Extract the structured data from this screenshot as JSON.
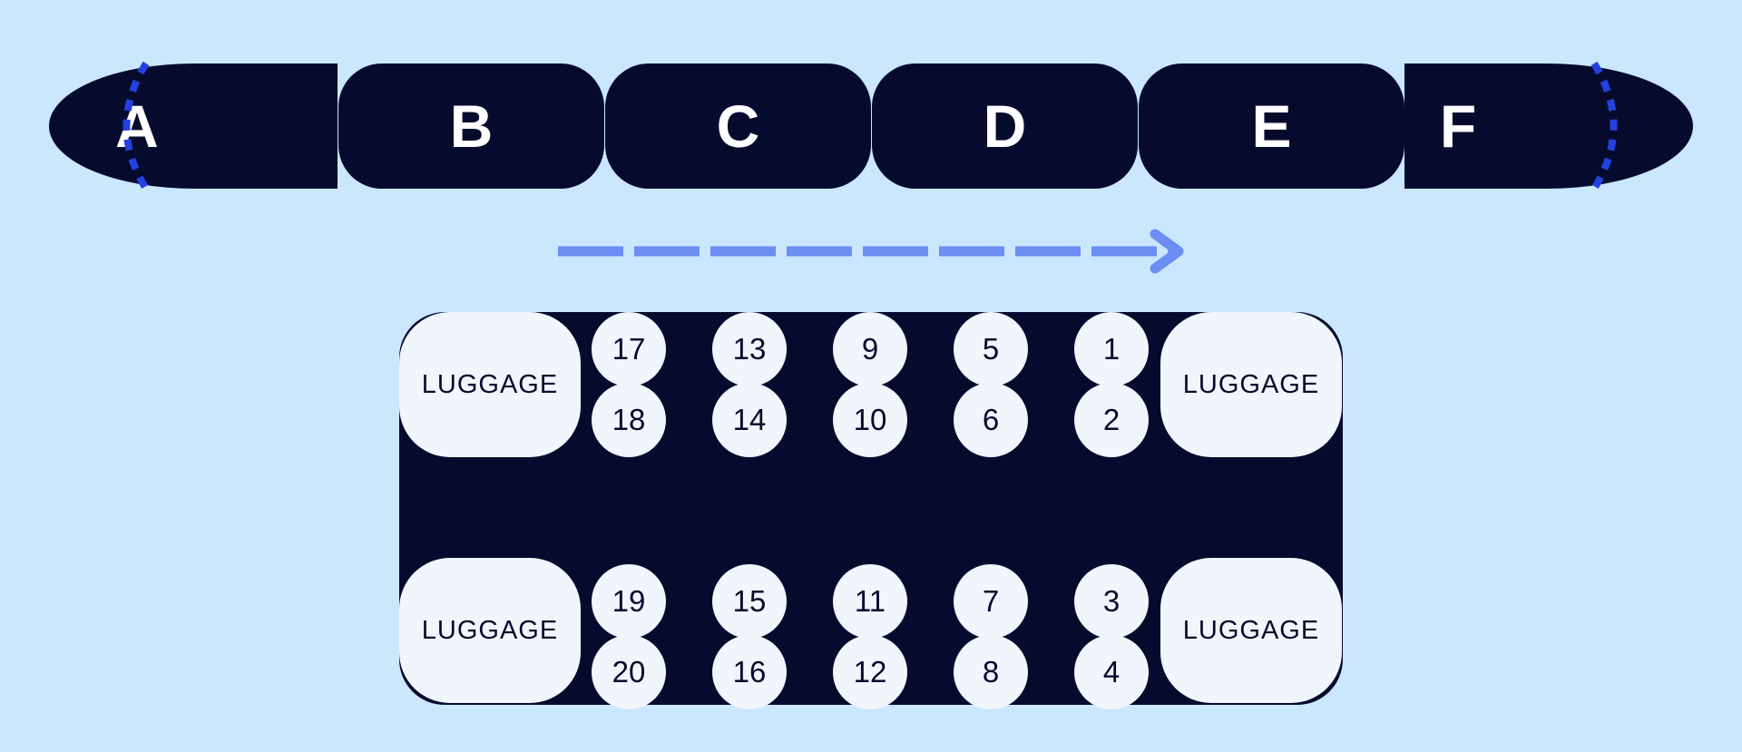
{
  "train": {
    "cars": [
      "A",
      "B",
      "C",
      "D",
      "E",
      "F"
    ]
  },
  "colors": {
    "background": "#cae7fd",
    "car": "#060b2e",
    "nose_dots": "#2341e0",
    "arrow": "#6c8df2",
    "seat": "#f1f5fc"
  },
  "seatmap": {
    "luggage_label": "LUGGAGE",
    "seat_columns": [
      [
        "17",
        "18",
        "19",
        "20"
      ],
      [
        "13",
        "14",
        "15",
        "16"
      ],
      [
        "9",
        "10",
        "11",
        "12"
      ],
      [
        "5",
        "6",
        "7",
        "8"
      ],
      [
        "1",
        "2",
        "3",
        "4"
      ]
    ]
  }
}
